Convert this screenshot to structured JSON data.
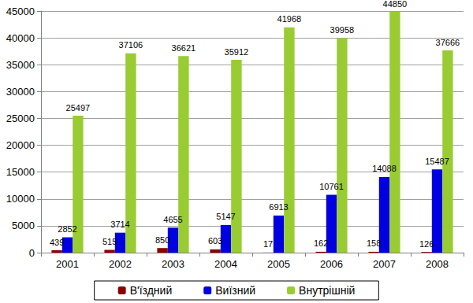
{
  "chart_data": {
    "type": "bar",
    "categories": [
      "2001",
      "2002",
      "2003",
      "2004",
      "2005",
      "2006",
      "2007",
      "2008"
    ],
    "series": [
      {
        "name": "В'їздний",
        "color": "#8b0000",
        "values": [
          439,
          515,
          850,
          603,
          17,
          162,
          158,
          126
        ]
      },
      {
        "name": "Виїзний",
        "color": "#0000e0",
        "values": [
          2852,
          3714,
          4655,
          5147,
          6913,
          10761,
          14088,
          15487
        ]
      },
      {
        "name": "Внутрішній",
        "color": "#99cc33",
        "values": [
          25497,
          37106,
          36621,
          35912,
          41968,
          39958,
          44850,
          37666
        ]
      }
    ],
    "ylim": [
      0,
      45000
    ],
    "yticks": [
      0,
      5000,
      10000,
      15000,
      20000,
      25000,
      30000,
      35000,
      40000,
      45000
    ],
    "grid": true,
    "legend": "bottom",
    "data_labels": true
  }
}
